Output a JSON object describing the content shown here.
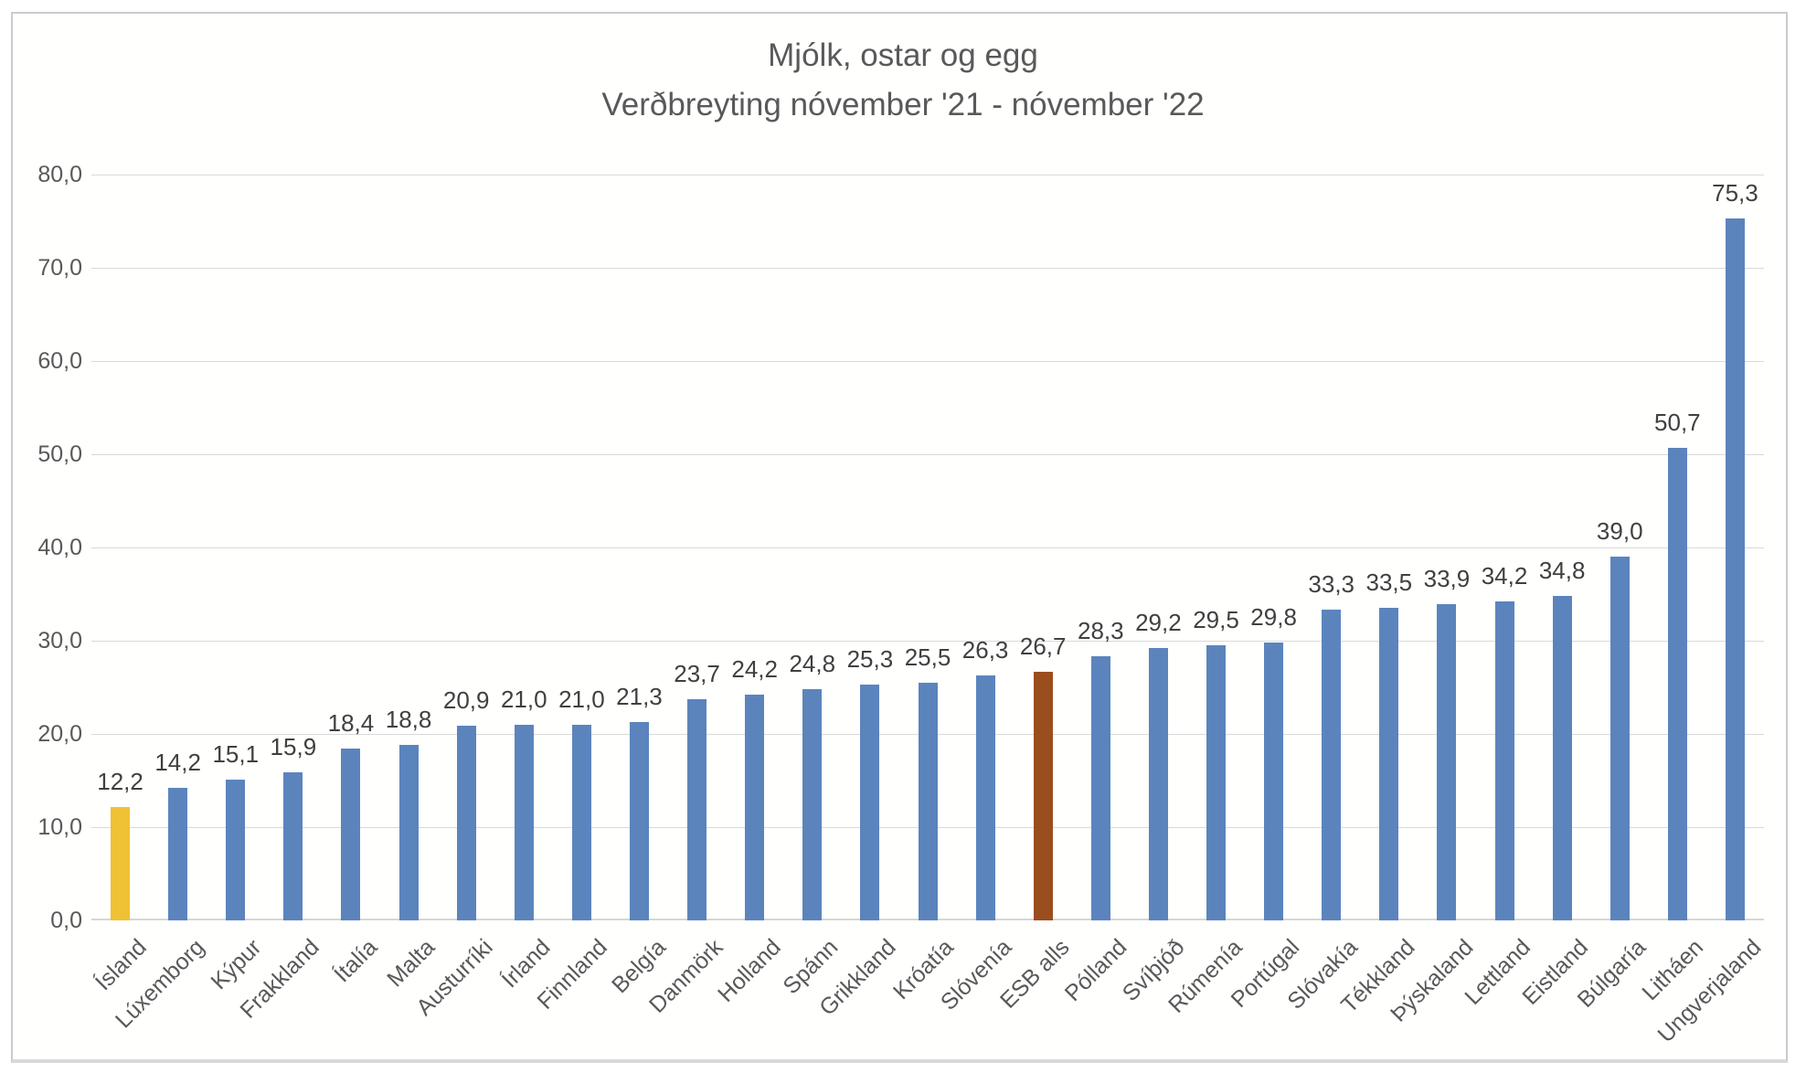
{
  "chart_data": {
    "type": "bar",
    "title": "Mjólk, ostar og egg",
    "subtitle": "Verðbreyting nóvember '21  - nóvember '22",
    "categories": [
      "Ísland",
      "Lúxemborg",
      "Kýpur",
      "Frakkland",
      "Ítalía",
      "Malta",
      "Austurríki",
      "Írland",
      "Finnland",
      "Belgía",
      "Danmörk",
      "Holland",
      "Spánn",
      "Grikkland",
      "Króatía",
      "Slóvenía",
      "ESB alls",
      "Pólland",
      "Svíþjóð",
      "Rúmenía",
      "Portúgal",
      "Slóvakía",
      "Tékkland",
      "Þýskaland",
      "Lettland",
      "Eistland",
      "Búlgaría",
      "Litháen",
      "Ungverjaland"
    ],
    "values": [
      12.2,
      14.2,
      15.1,
      15.9,
      18.4,
      18.8,
      20.9,
      21.0,
      21.0,
      21.3,
      23.7,
      24.2,
      24.8,
      25.3,
      25.5,
      26.3,
      26.7,
      28.3,
      29.2,
      29.5,
      29.8,
      33.3,
      33.5,
      33.9,
      34.2,
      34.8,
      39.0,
      50.7,
      75.3
    ],
    "value_labels": [
      "12,2",
      "14,2",
      "15,1",
      "15,9",
      "18,4",
      "18,8",
      "20,9",
      "21,0",
      "21,0",
      "21,3",
      "23,7",
      "24,2",
      "24,8",
      "25,3",
      "25,5",
      "26,3",
      "26,7",
      "28,3",
      "29,2",
      "29,5",
      "29,8",
      "33,3",
      "33,5",
      "33,9",
      "34,2",
      "34,8",
      "39,0",
      "50,7",
      "75,3"
    ],
    "y_ticks": [
      "0,0",
      "10,0",
      "20,0",
      "30,0",
      "40,0",
      "50,0",
      "60,0",
      "70,0",
      "80,0"
    ],
    "ylim": [
      0,
      80
    ],
    "grid": true,
    "legend": "none",
    "xlabel": "",
    "ylabel": "",
    "colors": {
      "bar_default": "#5b84bd",
      "title_text": "#595959",
      "axis_text": "#595959",
      "value_label_text": "#404040",
      "gridline": "#d9d9d9"
    },
    "special_bar_colors": {
      "0": "#efc134",
      "16": "#9a4e1e"
    }
  }
}
